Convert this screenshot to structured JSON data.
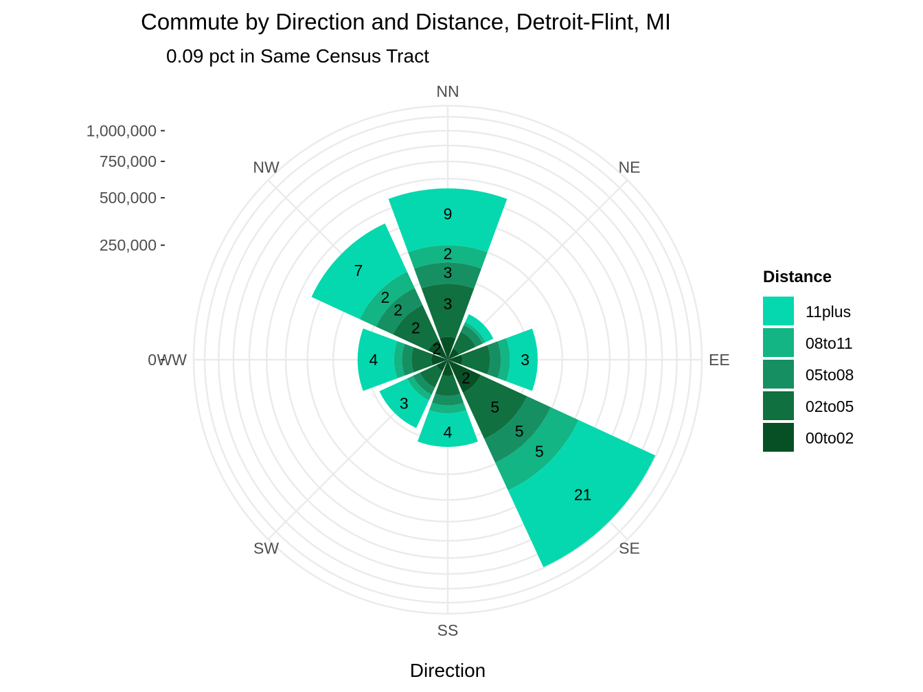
{
  "chart_data": {
    "type": "polar-stacked-bar",
    "title": "Commute by Direction and Distance, Detroit-Flint, MI",
    "subtitle": "0.09 pct in Same Census Tract",
    "xlabel": "Direction",
    "ylabel": "",
    "directions": [
      "NN",
      "NE",
      "EE",
      "SE",
      "SS",
      "SW",
      "WW",
      "NW"
    ],
    "radial_ticks": [
      {
        "value": 0,
        "label": "0"
      },
      {
        "value": 250000,
        "label": "250,000"
      },
      {
        "value": 500000,
        "label": "500,000"
      },
      {
        "value": 750000,
        "label": "750,000"
      },
      {
        "value": 1000000,
        "label": "1,000,000"
      }
    ],
    "rmax": 1230000,
    "legend": {
      "title": "Distance",
      "position": "right",
      "items": [
        {
          "name": "11plus",
          "color": "#05D8AE"
        },
        {
          "name": "08to11",
          "color": "#12B583"
        },
        {
          "name": "05to08",
          "color": "#168F63"
        },
        {
          "name": "02to05",
          "color": "#10703F"
        },
        {
          "name": "00to02",
          "color": "#075026"
        }
      ]
    },
    "series": [
      {
        "name": "00to02",
        "color": "#075026",
        "values": [
          10000,
          3000,
          4000,
          25000,
          5000,
          3000,
          5000,
          9000
        ],
        "labels": [
          "",
          "",
          "",
          "2",
          "",
          "",
          "",
          "2"
        ]
      },
      {
        "name": "02to05",
        "color": "#10703F",
        "values": [
          100000,
          15000,
          30000,
          120000,
          20000,
          15000,
          20000,
          60000
        ],
        "labels": [
          "3",
          "",
          "",
          "5",
          "",
          "",
          "",
          "2"
        ]
      },
      {
        "name": "05to08",
        "color": "#168F63",
        "values": [
          70000,
          10000,
          20000,
          100000,
          15000,
          10000,
          15000,
          50000
        ],
        "labels": [
          "3",
          "",
          "",
          "5",
          "",
          "",
          "",
          "2"
        ]
      },
      {
        "name": "08to11",
        "color": "#12B583",
        "values": [
          70000,
          5000,
          20000,
          150000,
          15000,
          10000,
          15000,
          60000
        ],
        "labels": [
          "2",
          "",
          "",
          "5",
          "",
          "",
          "",
          "2"
        ]
      },
      {
        "name": "11plus",
        "color": "#05D8AE",
        "values": [
          310000,
          15000,
          80000,
          600000,
          90000,
          70000,
          100000,
          250000
        ],
        "labels": [
          "9",
          "",
          "3",
          "21",
          "4",
          "3",
          "4",
          "7"
        ]
      }
    ],
    "grid": true
  }
}
